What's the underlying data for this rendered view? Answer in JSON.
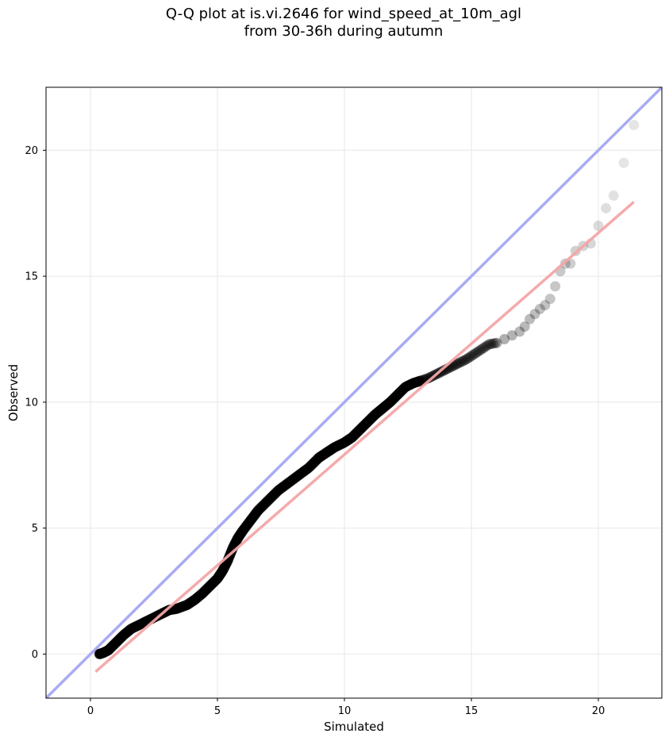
{
  "chart_data": {
    "type": "scatter",
    "title_lines": [
      "Q-Q plot at is.vi.2646 for wind_speed_at_10m_agl",
      "from 30-36h during autumn"
    ],
    "xlabel": "Simulated",
    "ylabel": "Observed",
    "xlim": [
      -1.75,
      22.5
    ],
    "ylim": [
      -1.75,
      22.5
    ],
    "xticks": [
      0,
      5,
      10,
      15,
      20
    ],
    "yticks": [
      0,
      5,
      10,
      15,
      20
    ],
    "xtick_labels": [
      "0",
      "5",
      "10",
      "15",
      "20"
    ],
    "ytick_labels": [
      "0",
      "5",
      "10",
      "15",
      "20"
    ],
    "grid": true,
    "colors": {
      "points": "#000000",
      "identity_line": "#a9abf4",
      "fit_line": "#f4a5a5",
      "grid": "#ebebeb"
    },
    "identity_line": {
      "from": [
        -1.75,
        -1.75
      ],
      "to": [
        22.5,
        22.5
      ]
    },
    "fit_line": {
      "from": [
        0.2,
        -0.7
      ],
      "to": [
        21.4,
        17.95
      ]
    },
    "quantiles": {
      "x": [
        0.35,
        0.5,
        0.7,
        1.0,
        1.3,
        1.6,
        2.0,
        2.4,
        2.8,
        3.1,
        3.4,
        3.8,
        4.1,
        4.4,
        4.7,
        5.0,
        5.2,
        5.4,
        5.6,
        5.8,
        6.0,
        6.3,
        6.6,
        7.0,
        7.4,
        7.8,
        8.2,
        8.6,
        9.0,
        9.3,
        9.6,
        10.0,
        10.3,
        10.6,
        10.9,
        11.2,
        11.5,
        11.8,
        12.1,
        12.4,
        12.7,
        13.0,
        13.3,
        13.6,
        13.9,
        14.2,
        14.5,
        14.8,
        15.1,
        15.4,
        15.7,
        16.0,
        16.3,
        16.6,
        16.9,
        17.1,
        17.3,
        17.5,
        17.7,
        17.9,
        18.1,
        18.3,
        18.5,
        18.7,
        18.9,
        19.1,
        19.4,
        19.7,
        20.0,
        20.3,
        20.6,
        21.0,
        21.4
      ],
      "y": [
        0.0,
        0.05,
        0.15,
        0.45,
        0.75,
        1.0,
        1.2,
        1.4,
        1.6,
        1.75,
        1.8,
        1.95,
        2.15,
        2.4,
        2.7,
        3.0,
        3.3,
        3.7,
        4.2,
        4.6,
        4.9,
        5.3,
        5.7,
        6.1,
        6.5,
        6.8,
        7.1,
        7.4,
        7.8,
        8.0,
        8.2,
        8.4,
        8.6,
        8.9,
        9.2,
        9.5,
        9.75,
        10.0,
        10.3,
        10.6,
        10.75,
        10.85,
        10.95,
        11.1,
        11.25,
        11.4,
        11.55,
        11.7,
        11.9,
        12.1,
        12.3,
        12.35,
        12.5,
        12.65,
        12.8,
        13.0,
        13.3,
        13.5,
        13.7,
        13.85,
        14.1,
        14.6,
        15.2,
        15.5,
        15.5,
        16.0,
        16.2,
        16.3,
        17.0,
        17.7,
        18.2,
        19.5,
        21.0
      ]
    }
  }
}
